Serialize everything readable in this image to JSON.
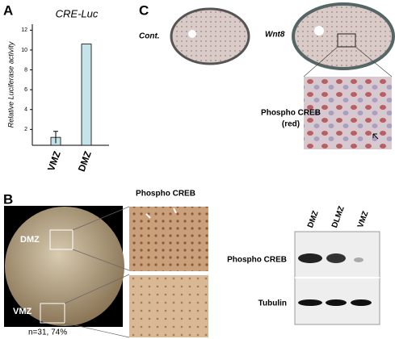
{
  "panels": {
    "a": "A",
    "b": "B",
    "c": "C"
  },
  "chart_data": {
    "type": "bar",
    "title": "CRE-Luc",
    "y_label": "Relative Luciferase activity",
    "categories": [
      "VMZ",
      "DMZ"
    ],
    "values": [
      1.2,
      10.6
    ],
    "errors": [
      0.6,
      null
    ],
    "color": "#c4e4ea",
    "ylim": [
      0.4,
      12.6
    ],
    "yticks": [
      2,
      4,
      6,
      8,
      10,
      12
    ],
    "grid": false
  },
  "panel_c": {
    "control_label": "Cont.",
    "wnt8_label": "Wnt8",
    "zoom_label": [
      "Phospho CREB",
      "(red)"
    ]
  },
  "panel_b": {
    "zoom_header": "Phospho CREB",
    "dmz_label": "DMZ",
    "vmz_label": "VMZ",
    "count": "n=31, 74%",
    "blot_lanes": [
      "DMZ",
      "DLMZ",
      "VMZ"
    ],
    "blot_rows": [
      "Phospho CREB",
      "Tubulin"
    ]
  }
}
